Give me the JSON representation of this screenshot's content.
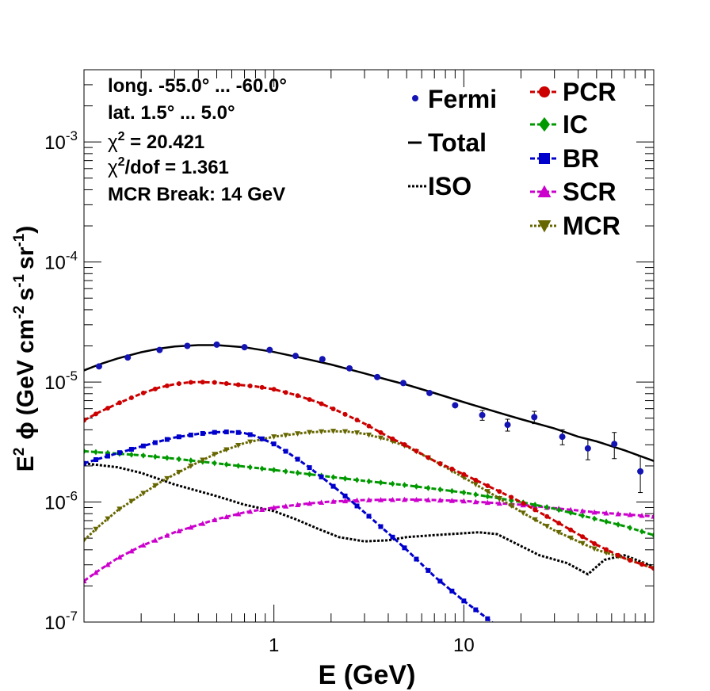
{
  "chart_data": {
    "type": "line",
    "xscale": "log",
    "yscale": "log",
    "xlim": [
      0.1,
      100
    ],
    "ylim": [
      1e-07,
      0.004
    ],
    "xlabel": "E (GeV)",
    "ylabel_parts": {
      "e": "E",
      "e_sup": "2",
      "phi": "ϕ",
      "open": "(GeV cm",
      "cm_sup": "-2",
      "s": "s",
      "s_sup": "-1",
      "sr": "sr",
      "sr_sup": "-1",
      "close": ")"
    },
    "x_tick_labels": [
      "1",
      "10"
    ],
    "y_tick_labels": [
      {
        "value": 1e-07,
        "base": "10",
        "exp": "-7"
      },
      {
        "value": 1e-06,
        "base": "10",
        "exp": "-6"
      },
      {
        "value": 1e-05,
        "base": "10",
        "exp": "-5"
      },
      {
        "value": 0.0001,
        "base": "10",
        "exp": "-4"
      },
      {
        "value": 0.001,
        "base": "10",
        "exp": "-3"
      }
    ],
    "info": {
      "longitude": "long. -55.0° ... -60.0°",
      "latitude": "lat. 1.5° ... 5.0°",
      "chi2_prefix": "χ",
      "chi2_sup": "2",
      "chi2_value": " = 20.421",
      "chi2dof_suffix": "/dof = 1.361",
      "break": "MCR Break: 14 GeV"
    },
    "legend": {
      "fermi": "Fermi",
      "total": "Total",
      "iso": "ISO",
      "pcr": "PCR",
      "ic": "IC",
      "br": "BR",
      "scr": "SCR",
      "mcr": "MCR"
    },
    "colors": {
      "fermi": "#1414b4",
      "total": "#000000",
      "iso": "#000000",
      "pcr": "#cc0000",
      "ic": "#009900",
      "br": "#0000cc",
      "scr": "#cc00cc",
      "mcr": "#666600"
    },
    "fermi_points": [
      {
        "x": 0.12,
        "y": 1.35e-05,
        "err": 0
      },
      {
        "x": 0.17,
        "y": 1.6e-05,
        "err": 0
      },
      {
        "x": 0.25,
        "y": 1.85e-05,
        "err": 0
      },
      {
        "x": 0.35,
        "y": 2e-05,
        "err": 0
      },
      {
        "x": 0.5,
        "y": 2.05e-05,
        "err": 0
      },
      {
        "x": 0.7,
        "y": 1.95e-05,
        "err": 0
      },
      {
        "x": 0.95,
        "y": 1.85e-05,
        "err": 0
      },
      {
        "x": 1.3,
        "y": 1.65e-05,
        "err": 0
      },
      {
        "x": 1.8,
        "y": 1.55e-05,
        "err": 0
      },
      {
        "x": 2.5,
        "y": 1.3e-05,
        "err": 0
      },
      {
        "x": 3.5,
        "y": 1.1e-05,
        "err": 0
      },
      {
        "x": 4.8,
        "y": 9.8e-06,
        "err": 0
      },
      {
        "x": 6.6,
        "y": 8.1e-06,
        "err": 0
      },
      {
        "x": 9.0,
        "y": 6.4e-06,
        "err": 0
      },
      {
        "x": 12.5,
        "y": 5.3e-06,
        "err": 5e-07
      },
      {
        "x": 17.0,
        "y": 4.4e-06,
        "err": 5e-07
      },
      {
        "x": 23.5,
        "y": 5.1e-06,
        "err": 6e-07
      },
      {
        "x": 33.0,
        "y": 3.5e-06,
        "err": 5e-07
      },
      {
        "x": 45.0,
        "y": 2.8e-06,
        "err": 5.5e-07
      },
      {
        "x": 62.0,
        "y": 3.05e-06,
        "err": 7.5e-07
      },
      {
        "x": 85.0,
        "y": 1.8e-06,
        "err": 6e-07
      }
    ],
    "series": [
      {
        "key": "total",
        "style": "solid",
        "marker": "none",
        "x": [
          0.1,
          0.12,
          0.15,
          0.2,
          0.25,
          0.3,
          0.4,
          0.5,
          0.7,
          1.0,
          1.5,
          2,
          3,
          4,
          5,
          7,
          10,
          15,
          20,
          30,
          40,
          50,
          70,
          100
        ],
        "y": [
          1.25e-05,
          1.4e-05,
          1.57e-05,
          1.77e-05,
          1.9e-05,
          1.98e-05,
          2.03e-05,
          2.03e-05,
          1.95e-05,
          1.78e-05,
          1.55e-05,
          1.4e-05,
          1.18e-05,
          1.04e-05,
          9.5e-06,
          8.1e-06,
          6.8e-06,
          5.6e-06,
          4.9e-06,
          4.1e-06,
          3.5e-06,
          3.2e-06,
          2.7e-06,
          2.2e-06
        ]
      },
      {
        "key": "pcr",
        "style": "dashed",
        "marker": "circle",
        "x": [
          0.1,
          0.12,
          0.15,
          0.2,
          0.25,
          0.3,
          0.35,
          0.4,
          0.5,
          0.6,
          0.8,
          1.0,
          1.3,
          1.7,
          2.2,
          3,
          4,
          5,
          7,
          10,
          15,
          20,
          30,
          40,
          50,
          70,
          100
        ],
        "y": [
          4.8e-06,
          5.6e-06,
          6.6e-06,
          8e-06,
          9e-06,
          9.6e-06,
          9.9e-06,
          1e-05,
          9.9e-06,
          9.6e-06,
          9.2e-06,
          8.7e-06,
          7.8e-06,
          6.8e-06,
          5.7e-06,
          4.5e-06,
          3.5e-06,
          2.95e-06,
          2.2e-06,
          1.7e-06,
          1.25e-06,
          1e-06,
          7e-07,
          5.4e-07,
          4.4e-07,
          3.4e-07,
          2.8e-07
        ]
      },
      {
        "key": "ic",
        "style": "dashed",
        "marker": "diamond",
        "x": [
          0.1,
          0.2,
          0.3,
          0.5,
          1,
          2,
          3,
          5,
          10,
          20,
          30,
          50,
          70,
          100
        ],
        "y": [
          2.65e-06,
          2.45e-06,
          2.3e-06,
          2.1e-06,
          1.85e-06,
          1.62e-06,
          1.5e-06,
          1.38e-06,
          1.2e-06,
          1e-06,
          8.8e-07,
          7.2e-07,
          6.3e-07,
          5.3e-07
        ]
      },
      {
        "key": "br",
        "style": "dashed",
        "marker": "square",
        "x": [
          0.1,
          0.12,
          0.15,
          0.2,
          0.25,
          0.3,
          0.4,
          0.5,
          0.6,
          0.7,
          0.8,
          1.0,
          1.2,
          1.5,
          2,
          2.5,
          3,
          4,
          5,
          7,
          10,
          13,
          16
        ],
        "y": [
          2.1e-06,
          2.3e-06,
          2.55e-06,
          2.9e-06,
          3.2e-06,
          3.45e-06,
          3.7e-06,
          3.82e-06,
          3.85e-06,
          3.75e-06,
          3.55e-06,
          3.05e-06,
          2.55e-06,
          2e-06,
          1.4e-06,
          1.05e-06,
          8.2e-07,
          5.5e-07,
          4e-07,
          2.4e-07,
          1.5e-07,
          1.1e-07,
          8.5e-08
        ]
      },
      {
        "key": "scr",
        "style": "dashed",
        "marker": "triangle",
        "x": [
          0.1,
          0.12,
          0.15,
          0.2,
          0.3,
          0.5,
          0.7,
          1,
          1.5,
          2,
          3,
          5,
          7,
          10,
          20,
          30,
          50,
          100
        ],
        "y": [
          2.2e-07,
          2.7e-07,
          3.4e-07,
          4.3e-07,
          5.6e-07,
          7.2e-07,
          8.2e-07,
          9e-07,
          9.7e-07,
          1.01e-06,
          1.04e-06,
          1.05e-06,
          1.04e-06,
          1.02e-06,
          9.5e-07,
          8.9e-07,
          8.2e-07,
          7.6e-07
        ]
      },
      {
        "key": "mcr",
        "style": "dotted",
        "marker": "triangle-down",
        "x": [
          0.1,
          0.12,
          0.15,
          0.2,
          0.25,
          0.3,
          0.4,
          0.5,
          0.7,
          1,
          1.5,
          2,
          2.5,
          3,
          4,
          5,
          7,
          10,
          15,
          20,
          30,
          40,
          50,
          70,
          100
        ],
        "y": [
          4.8e-07,
          6.3e-07,
          8.5e-07,
          1.15e-06,
          1.45e-06,
          1.7e-06,
          2.15e-06,
          2.55e-06,
          3.1e-06,
          3.5e-06,
          3.8e-06,
          3.9e-06,
          3.85e-06,
          3.7e-06,
          3.3e-06,
          2.9e-06,
          2.2e-06,
          1.6e-06,
          1.1e-06,
          8.3e-07,
          5.8e-07,
          4.7e-07,
          4e-07,
          3.4e-07,
          2.8e-07
        ]
      },
      {
        "key": "iso",
        "style": "dotted",
        "marker": "none",
        "x": [
          0.1,
          0.15,
          0.2,
          0.3,
          0.5,
          0.7,
          1.0,
          1.3,
          1.7,
          2.2,
          3.0,
          4.0,
          5.0,
          7.0,
          10.0,
          12.0,
          15.0,
          20.0,
          25.0,
          35.0,
          45.0,
          55.0,
          70.0,
          100.0
        ],
        "y": [
          2.1e-06,
          1.95e-06,
          1.75e-06,
          1.4e-06,
          1.12e-06,
          9.5e-07,
          8.4e-07,
          7.2e-07,
          6e-07,
          5.1e-07,
          4.7e-07,
          4.8e-07,
          5.1e-07,
          5.3e-07,
          5.5e-07,
          5.6e-07,
          5.4e-07,
          4.3e-07,
          3.6e-07,
          3.1e-07,
          2.5e-07,
          3.3e-07,
          3.6e-07,
          2.9e-07
        ]
      }
    ]
  }
}
